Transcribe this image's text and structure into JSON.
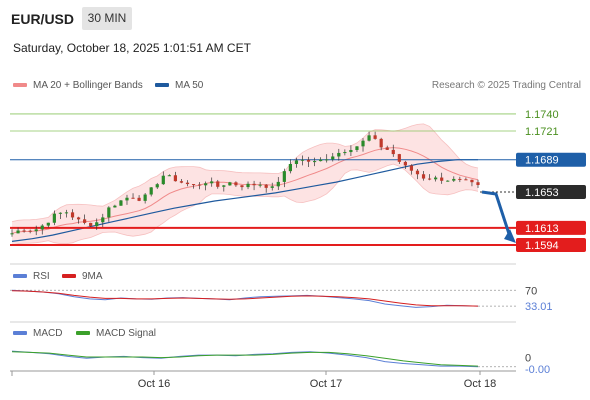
{
  "header": {
    "symbol": "EUR/USD",
    "timeframe": "30 MIN",
    "datetime": "Saturday, October 18, 2025 1:01:51 AM CET",
    "credit": "Research © 2025 Trading Central"
  },
  "colors": {
    "bollinger": "#f08a8a",
    "bollinger_fill": "#fde3e3",
    "ma50": "#1f5a9e",
    "resistance_green": "#8ac45f",
    "pivot_blue": "#1e5fa8",
    "support_red": "#e31d1d",
    "candle_up": "#2a8a2a",
    "candle_down": "#c0392b",
    "arrow": "#1e5fa8",
    "rsi": "#5b7fd6",
    "ma9": "#d62020",
    "macd": "#5b7fd6",
    "macd_signal": "#3ba02a"
  },
  "chart_data": [
    {
      "type": "candlestick",
      "title": "EUR/USD",
      "legend": [
        {
          "name": "MA 20 + Bollinger Bands",
          "color": "#f08a8a"
        },
        {
          "name": "MA 50",
          "color": "#1f5a9e"
        }
      ],
      "ylim": [
        1.1575,
        1.176
      ],
      "levels": [
        {
          "label": "1.1740",
          "value": 1.174,
          "kind": "resistance"
        },
        {
          "label": "1.1721",
          "value": 1.1721,
          "kind": "resistance"
        },
        {
          "label": "1.1689",
          "value": 1.1689,
          "kind": "pivot"
        },
        {
          "label": "1.1653",
          "value": 1.1653,
          "kind": "current"
        },
        {
          "label": "1.1613",
          "value": 1.1613,
          "kind": "support"
        },
        {
          "label": "1.1594",
          "value": 1.1594,
          "kind": "support"
        }
      ],
      "price_path": [
        1.1607,
        1.1612,
        1.161,
        1.1617,
        1.1628,
        1.1631,
        1.1622,
        1.1616,
        1.162,
        1.1636,
        1.1643,
        1.1649,
        1.1644,
        1.1658,
        1.1672,
        1.1667,
        1.1662,
        1.166,
        1.1665,
        1.1659,
        1.1664,
        1.166,
        1.1661,
        1.1662,
        1.1657,
        1.1672,
        1.169,
        1.1688,
        1.1686,
        1.1691,
        1.1696,
        1.1701,
        1.1705,
        1.1716,
        1.1704,
        1.1698,
        1.1683,
        1.1676,
        1.1669,
        1.1668,
        1.1667,
        1.1666,
        1.1664,
        1.1659
      ],
      "ma50": [
        1.1598,
        1.1601,
        1.1605,
        1.161,
        1.1615,
        1.162,
        1.1625,
        1.163,
        1.1635,
        1.1639,
        1.1643,
        1.1646,
        1.1649,
        1.1652,
        1.1656,
        1.166,
        1.1664,
        1.1669,
        1.1674,
        1.1679,
        1.1684,
        1.1687,
        1.1689,
        1.1689
      ],
      "projection": [
        1.1653,
        1.1594
      ],
      "x_ticks": [
        "Oct 16",
        "Oct 17",
        "Oct 18"
      ]
    },
    {
      "type": "line",
      "title": "RSI",
      "series": [
        {
          "name": "RSI",
          "values": [
            70,
            68,
            66,
            62,
            55,
            50,
            48,
            52,
            50,
            49,
            52,
            53,
            51,
            50,
            48,
            52,
            55,
            56,
            57,
            58,
            56,
            53,
            50,
            46,
            38,
            34,
            30,
            32,
            35,
            34,
            33
          ]
        },
        {
          "name": "9MA",
          "values": [
            69,
            68,
            66,
            63,
            58,
            54,
            51,
            51,
            50,
            50,
            51,
            52,
            51,
            50,
            49,
            50,
            52,
            54,
            56,
            57,
            56,
            55,
            53,
            50,
            45,
            40,
            36,
            34,
            34,
            34,
            33
          ]
        }
      ],
      "levels": [
        {
          "label": "70",
          "value": 70
        }
      ],
      "current_label": "33.01",
      "ylim": [
        10,
        80
      ]
    },
    {
      "type": "line",
      "title": "MACD",
      "series": [
        {
          "name": "MACD",
          "values": [
            0.0014,
            0.0012,
            0.001,
            0.0006,
            0.0003,
            0.0005,
            0.0006,
            0.0004,
            0.0003,
            0.0006,
            0.0008,
            0.0008,
            0.0007,
            0.0009,
            0.001,
            0.0012,
            0.0013,
            0.0011,
            0.0008,
            0.0004,
            -0.0002,
            -0.0005,
            -0.0007,
            -0.0009,
            -0.0009,
            -0.001
          ]
        },
        {
          "name": "MACD Signal",
          "values": [
            0.0013,
            0.0012,
            0.0011,
            0.0008,
            0.0005,
            0.0005,
            0.0005,
            0.0005,
            0.0004,
            0.0005,
            0.0007,
            0.0008,
            0.0008,
            0.0008,
            0.0009,
            0.0011,
            0.0012,
            0.0012,
            0.001,
            0.0007,
            0.0003,
            -0.0001,
            -0.0004,
            -0.0007,
            -0.0008,
            -0.0009
          ]
        }
      ],
      "levels": [
        {
          "label": "0",
          "value": 0
        }
      ],
      "current_label": "-0.00",
      "ylim": [
        -0.0015,
        0.0025
      ]
    }
  ]
}
